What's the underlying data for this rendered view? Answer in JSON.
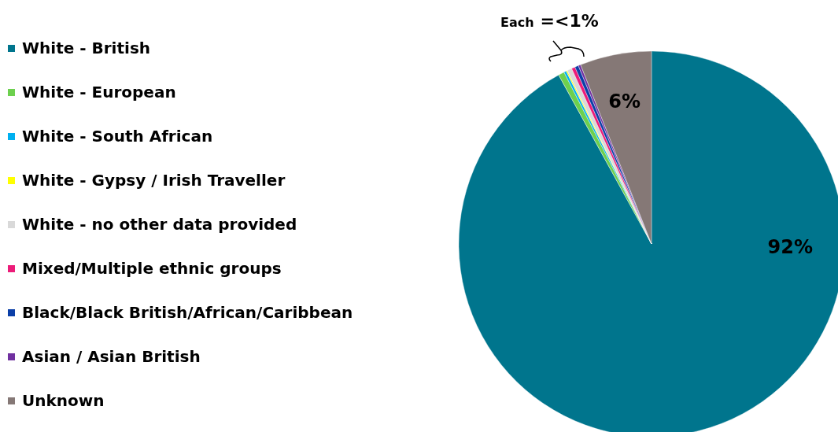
{
  "chart_data": {
    "type": "pie",
    "categories": [
      "White - British",
      "White - European",
      "White - South African",
      "White - Gypsy / Irish Traveller",
      "White - no other data provided",
      "Mixed/Multiple ethnic groups",
      "Black/Black British/African/Caribbean",
      "Asian / Asian British",
      "Unknown"
    ],
    "values": [
      92,
      0.5,
      0.2,
      0.1,
      0.4,
      0.3,
      0.3,
      0.2,
      6
    ],
    "colors": [
      "#00758d",
      "#6dd04e",
      "#00b0f0",
      "#ffff00",
      "#d9d9d9",
      "#ec1c79",
      "#0b3fa7",
      "#7030a0",
      "#857876"
    ],
    "value_labels": [
      "92%",
      null,
      null,
      null,
      null,
      null,
      null,
      null,
      "6%"
    ],
    "annotations": [
      "Each =<1%"
    ],
    "legend": "left"
  }
}
